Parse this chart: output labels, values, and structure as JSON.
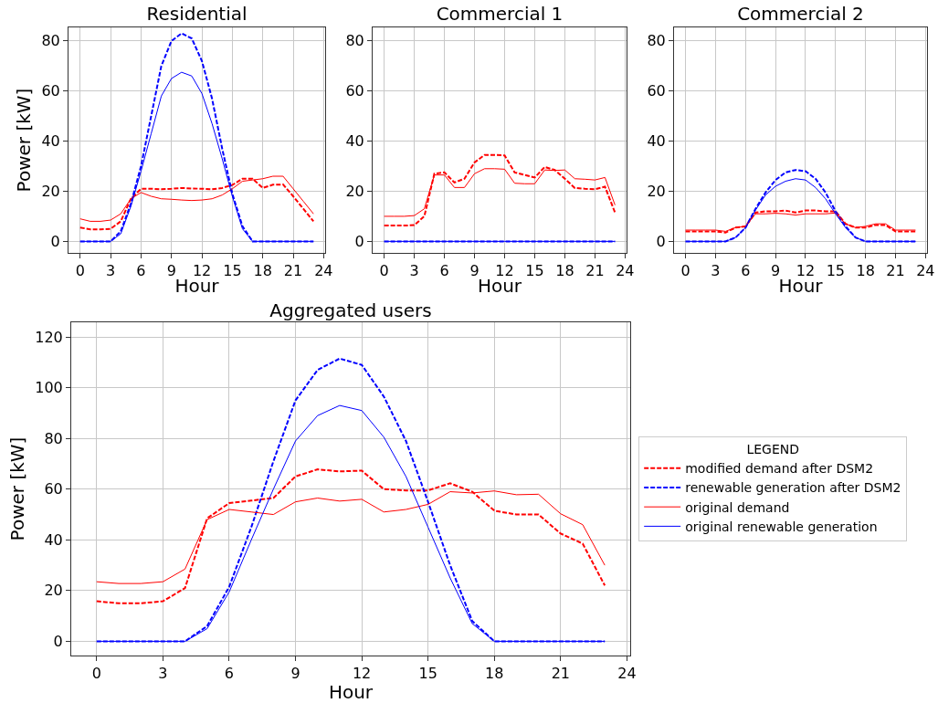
{
  "chart_data": [
    {
      "type": "line",
      "title": "Residential",
      "xlabel": "Hour",
      "ylabel": "Power [kW]",
      "x": [
        0,
        1,
        2,
        3,
        4,
        5,
        6,
        7,
        8,
        9,
        10,
        11,
        12,
        13,
        14,
        15,
        16,
        17,
        18,
        19,
        20,
        21,
        22,
        23
      ],
      "xlim": [
        -1.15,
        24.15
      ],
      "xticks": [
        0,
        3,
        6,
        9,
        12,
        15,
        18,
        21,
        24
      ],
      "ylim": [
        -4.6,
        85.4
      ],
      "yticks": [
        0,
        20,
        40,
        60,
        80
      ],
      "grid": true,
      "legend": false,
      "series": [
        {
          "color": "#ff0000",
          "line_style": "dashed",
          "values": [
            5.5,
            4.8,
            4.8,
            5,
            8,
            17,
            21,
            21,
            20.8,
            21,
            21.3,
            21.1,
            21,
            20.8,
            21.3,
            22.5,
            25,
            25,
            21.3,
            22.6,
            22.7,
            18,
            13,
            8
          ]
        },
        {
          "color": "#0000ff",
          "line_style": "dashed",
          "values": [
            0,
            0,
            0,
            0,
            4,
            15,
            30,
            50,
            70,
            80,
            83,
            81,
            72,
            57,
            37,
            19,
            6,
            0,
            0,
            0,
            0,
            0,
            0,
            0
          ]
        },
        {
          "color": "#ff0000",
          "line_style": "solid",
          "values": [
            9,
            8,
            8,
            8.5,
            11,
            17,
            19.5,
            18,
            17,
            16.8,
            16.5,
            16.3,
            16.5,
            17,
            18.5,
            21,
            24,
            24.5,
            25,
            26,
            26,
            21,
            16,
            11
          ]
        },
        {
          "color": "#0000ff",
          "line_style": "solid",
          "values": [
            0,
            0,
            0,
            0,
            3,
            14,
            28,
            43,
            58,
            65,
            67.5,
            66,
            59,
            47,
            33,
            18,
            5,
            0,
            0,
            0,
            0,
            0,
            0,
            0
          ]
        }
      ]
    },
    {
      "type": "line",
      "title": "Commercial 1",
      "xlabel": "Hour",
      "x": [
        0,
        1,
        2,
        3,
        4,
        5,
        6,
        7,
        8,
        9,
        10,
        11,
        12,
        13,
        14,
        15,
        16,
        17,
        18,
        19,
        20,
        21,
        22,
        23
      ],
      "xlim": [
        -1.15,
        24.15
      ],
      "xticks": [
        0,
        3,
        6,
        9,
        12,
        15,
        18,
        21,
        24
      ],
      "ylim": [
        -4.6,
        85.4
      ],
      "yticks": [
        0,
        20,
        40,
        60,
        80
      ],
      "grid": true,
      "legend": false,
      "series": [
        {
          "color": "#ff0000",
          "line_style": "dashed",
          "values": [
            6.3,
            6.3,
            6.3,
            6.5,
            10,
            27,
            27.5,
            23.5,
            25,
            31.5,
            34.5,
            34.5,
            34.3,
            27.5,
            26.5,
            25.5,
            29.7,
            28.5,
            25,
            21.3,
            21,
            20.8,
            21.8,
            11.5
          ]
        },
        {
          "color": "#0000ff",
          "line_style": "dashed",
          "values": [
            0,
            0,
            0,
            0,
            0,
            0,
            0,
            0,
            0,
            0,
            0,
            0,
            0,
            0,
            0,
            0,
            0,
            0,
            0,
            0,
            0,
            0,
            0,
            0
          ]
        },
        {
          "color": "#ff0000",
          "line_style": "solid",
          "values": [
            10,
            10,
            10,
            10.3,
            13,
            26.5,
            26.5,
            21.5,
            21.5,
            27,
            29,
            29,
            28.8,
            23.2,
            23,
            23,
            28.5,
            28.3,
            28.5,
            25,
            24.8,
            24.5,
            25.5,
            14.5
          ]
        },
        {
          "color": "#0000ff",
          "line_style": "solid",
          "values": [
            0,
            0,
            0,
            0,
            0,
            0,
            0,
            0,
            0,
            0,
            0,
            0,
            0,
            0,
            0,
            0,
            0,
            0,
            0,
            0,
            0,
            0,
            0,
            0
          ]
        }
      ]
    },
    {
      "type": "line",
      "title": "Commercial 2",
      "xlabel": "Hour",
      "x": [
        0,
        1,
        2,
        3,
        4,
        5,
        6,
        7,
        8,
        9,
        10,
        11,
        12,
        13,
        14,
        15,
        16,
        17,
        18,
        19,
        20,
        21,
        22,
        23
      ],
      "xlim": [
        -1.15,
        24.15
      ],
      "xticks": [
        0,
        3,
        6,
        9,
        12,
        15,
        18,
        21,
        24
      ],
      "ylim": [
        -4.6,
        85.4
      ],
      "yticks": [
        0,
        20,
        40,
        60,
        80
      ],
      "grid": true,
      "legend": false,
      "series": [
        {
          "color": "#ff0000",
          "line_style": "dashed",
          "values": [
            4,
            4,
            4,
            4,
            3.5,
            5.5,
            6,
            11.5,
            12,
            12,
            12.3,
            11.5,
            12.3,
            12.3,
            12,
            12,
            7,
            5.5,
            5.5,
            6.5,
            6.5,
            4,
            4,
            4
          ]
        },
        {
          "color": "#0000ff",
          "line_style": "dashed",
          "values": [
            0,
            0,
            0,
            0,
            0,
            1.5,
            5.5,
            13,
            19.5,
            24.5,
            27.5,
            28.5,
            28,
            25,
            19.5,
            12,
            6,
            1.5,
            0,
            0,
            0,
            0,
            0,
            0
          ]
        },
        {
          "color": "#ff0000",
          "line_style": "solid",
          "values": [
            4.5,
            4.5,
            4.5,
            4.5,
            4,
            5.5,
            6,
            11,
            11,
            11.2,
            11,
            10.5,
            11,
            11,
            11,
            11.3,
            7,
            5.5,
            6,
            7,
            7,
            4.5,
            4.5,
            4.5
          ]
        },
        {
          "color": "#0000ff",
          "line_style": "solid",
          "values": [
            0,
            0,
            0,
            0,
            0,
            1.5,
            5.5,
            12.5,
            18.5,
            22,
            24,
            25,
            24.5,
            21.5,
            17,
            11,
            5.5,
            1.5,
            0,
            0,
            0,
            0,
            0,
            0
          ]
        }
      ]
    },
    {
      "type": "line",
      "title": "Aggregated users",
      "xlabel": "Hour",
      "ylabel": "Power [kW]",
      "legend_title": "LEGEND",
      "x": [
        0,
        1,
        2,
        3,
        4,
        5,
        6,
        7,
        8,
        9,
        10,
        11,
        12,
        13,
        14,
        15,
        16,
        17,
        18,
        19,
        20,
        21,
        22,
        23
      ],
      "xlim": [
        -1.15,
        24.15
      ],
      "xticks": [
        0,
        3,
        6,
        9,
        12,
        15,
        18,
        21,
        24
      ],
      "ylim": [
        -5.6,
        125.8
      ],
      "yticks": [
        0,
        20,
        40,
        60,
        80,
        100,
        120
      ],
      "grid": true,
      "legend": "right",
      "series": [
        {
          "name": "modified demand after DSM2",
          "color": "#ff0000",
          "line_style": "dashed",
          "values": [
            15.8,
            15,
            15,
            15.8,
            21,
            48.5,
            54.5,
            55.5,
            56.5,
            65,
            67.8,
            67,
            67.3,
            60,
            59.5,
            59.5,
            62.3,
            59,
            51.5,
            50,
            50,
            42.5,
            38.5,
            22
          ]
        },
        {
          "name": "renewable generation after DSM2",
          "color": "#0000ff",
          "line_style": "dashed",
          "values": [
            0,
            0,
            0,
            0,
            0,
            6,
            21.5,
            45,
            71,
            95,
            107,
            111.5,
            109,
            96.5,
            79,
            55,
            30,
            8,
            0,
            0,
            0,
            0,
            0,
            0
          ]
        },
        {
          "name": "original demand",
          "color": "#ff0000",
          "line_style": "solid",
          "values": [
            23.5,
            22.8,
            22.8,
            23.5,
            28.5,
            48,
            52,
            51,
            50,
            55,
            56.5,
            55.3,
            56,
            51,
            52,
            54,
            59,
            58.5,
            59.3,
            57.8,
            58,
            50.3,
            46,
            30
          ]
        },
        {
          "name": "original renewable generation",
          "color": "#0000ff",
          "line_style": "solid",
          "values": [
            0,
            0,
            0,
            0,
            0,
            5,
            19.5,
            40,
            60,
            79,
            89,
            93,
            91,
            80.5,
            65,
            45,
            25,
            7,
            0,
            0,
            0,
            0,
            0,
            0
          ]
        }
      ]
    }
  ]
}
